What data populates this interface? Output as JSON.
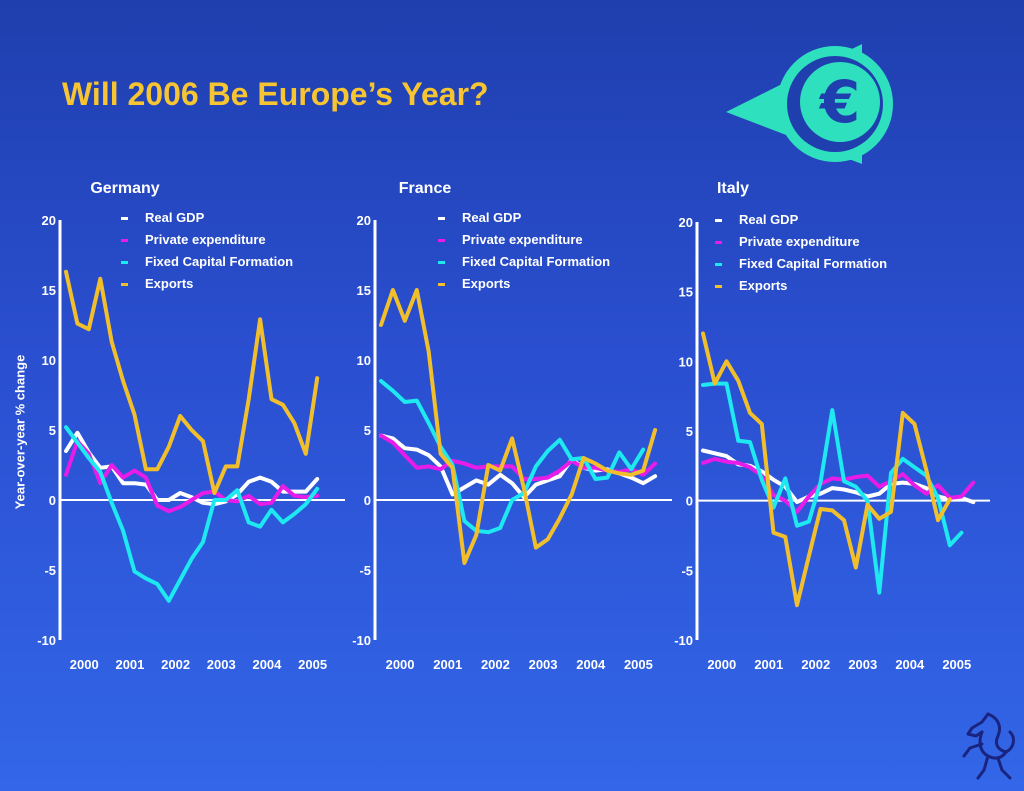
{
  "title": "Will 2006 Be Europe’s Year?",
  "ylabel": "Year-over-year % change",
  "colors": {
    "gdp": "#ffffff",
    "private": "#e81ce8",
    "fixed": "#1ee8f0",
    "exports": "#f2bf2c",
    "title": "#f7c531",
    "logo": "#2ee0bd"
  },
  "logos": [
    "euro-logo",
    "horse-logo"
  ],
  "chart_data": [
    {
      "type": "line",
      "title": "Germany",
      "ylim": [
        -10,
        20
      ],
      "y_ticks": [
        "20",
        "15",
        "10",
        "5",
        "0",
        "-5",
        "-10"
      ],
      "x_ticks": [
        "2000",
        "2001",
        "2002",
        "2003",
        "2004",
        "2005"
      ],
      "xlim": [
        2000,
        2006
      ],
      "legend": "top",
      "series": [
        {
          "name": "Real GDP",
          "key": "gdp",
          "x": [
            2000,
            2000.25,
            2000.5,
            2000.75,
            2001,
            2001.25,
            2001.5,
            2001.75,
            2002,
            2002.25,
            2002.5,
            2002.75,
            2003,
            2003.25,
            2003.5,
            2003.75,
            2004,
            2004.25,
            2004.5,
            2004.75,
            2005,
            2005.25,
            2005.5,
            2005.75
          ],
          "y": [
            3.5,
            4.8,
            3.4,
            2.3,
            2.4,
            1.2,
            1.2,
            1.1,
            0.0,
            0.0,
            0.5,
            0.2,
            -0.2,
            -0.3,
            -0.1,
            0.4,
            1.3,
            1.6,
            1.3,
            0.6,
            0.6,
            0.6,
            1.5,
            null
          ]
        },
        {
          "name": "Private expenditure",
          "key": "private",
          "x": [
            2000,
            2000.25,
            2000.5,
            2000.75,
            2001,
            2001.25,
            2001.5,
            2001.75,
            2002,
            2002.25,
            2002.5,
            2002.75,
            2003,
            2003.25,
            2003.5,
            2003.75,
            2004,
            2004.25,
            2004.5,
            2004.75,
            2005,
            2005.25,
            2005.5,
            2005.75
          ],
          "y": [
            1.8,
            4.2,
            3.3,
            1.2,
            2.5,
            1.6,
            2.1,
            1.6,
            -0.4,
            -0.8,
            -0.5,
            0.0,
            0.5,
            0.6,
            0.0,
            -0.1,
            0.3,
            -0.3,
            -0.2,
            1.0,
            0.3,
            0.2,
            0.3,
            null
          ]
        },
        {
          "name": "Fixed Capital Formation",
          "key": "fixed",
          "x": [
            2000,
            2000.25,
            2000.5,
            2000.75,
            2001,
            2001.25,
            2001.5,
            2001.75,
            2002,
            2002.25,
            2002.5,
            2002.75,
            2003,
            2003.25,
            2003.5,
            2003.75,
            2004,
            2004.25,
            2004.5,
            2004.75,
            2005,
            2005.25,
            2005.5,
            2005.75
          ],
          "y": [
            5.2,
            4.1,
            3.0,
            2.0,
            -0.2,
            -2.2,
            -5.1,
            -5.6,
            -6.0,
            -7.2,
            -5.7,
            -4.2,
            -3.0,
            0.0,
            0.0,
            0.7,
            -1.6,
            -1.9,
            -0.7,
            -1.6,
            -1.0,
            -0.3,
            0.8,
            null
          ]
        },
        {
          "name": "Exports",
          "key": "exports",
          "x": [
            2000,
            2000.25,
            2000.5,
            2000.75,
            2001,
            2001.25,
            2001.5,
            2001.75,
            2002,
            2002.25,
            2002.5,
            2002.75,
            2003,
            2003.25,
            2003.5,
            2003.75,
            2004,
            2004.25,
            2004.5,
            2004.75,
            2005,
            2005.25,
            2005.5,
            2005.75
          ],
          "y": [
            16.3,
            12.6,
            12.2,
            15.8,
            11.3,
            8.5,
            6.1,
            2.2,
            2.2,
            3.8,
            6.0,
            5.0,
            4.2,
            0.5,
            2.4,
            2.4,
            7.2,
            12.9,
            7.2,
            6.8,
            5.5,
            3.3,
            8.7,
            null
          ]
        }
      ]
    },
    {
      "type": "line",
      "title": "France",
      "ylim": [
        -10,
        20
      ],
      "y_ticks": [
        "20",
        "15",
        "10",
        "5",
        "0",
        "-5",
        "-10"
      ],
      "x_ticks": [
        "2000",
        "2001",
        "2002",
        "2003",
        "2004",
        "2005"
      ],
      "xlim": [
        2000,
        2006
      ],
      "legend": "top",
      "series": [
        {
          "name": "Real GDP",
          "key": "gdp",
          "x": [
            2000,
            2000.25,
            2000.5,
            2000.75,
            2001,
            2001.25,
            2001.5,
            2001.75,
            2002,
            2002.25,
            2002.5,
            2002.75,
            2003,
            2003.25,
            2003.5,
            2003.75,
            2004,
            2004.25,
            2004.5,
            2004.75,
            2005,
            2005.25,
            2005.5,
            2005.75
          ],
          "y": [
            4.6,
            4.4,
            3.7,
            3.6,
            3.2,
            2.4,
            0.4,
            0.9,
            1.4,
            1.1,
            1.8,
            1.2,
            0.2,
            1.1,
            1.4,
            1.7,
            2.9,
            2.3,
            2.1,
            2.2,
            1.9,
            1.6,
            1.2,
            1.7
          ]
        },
        {
          "name": "Private expenditure",
          "key": "private",
          "x": [
            2000,
            2000.25,
            2000.5,
            2000.75,
            2001,
            2001.25,
            2001.5,
            2001.75,
            2002,
            2002.25,
            2002.5,
            2002.75,
            2003,
            2003.25,
            2003.5,
            2003.75,
            2004,
            2004.25,
            2004.5,
            2004.75,
            2005,
            2005.25,
            2005.5,
            2005.75
          ],
          "y": [
            4.6,
            4.1,
            3.2,
            2.3,
            2.4,
            2.2,
            2.8,
            2.6,
            2.3,
            2.4,
            2.4,
            2.4,
            1.5,
            1.5,
            1.6,
            2.1,
            2.8,
            2.3,
            2.3,
            2.1,
            2.0,
            2.2,
            1.8,
            2.6
          ]
        },
        {
          "name": "Fixed Capital Formation",
          "key": "fixed",
          "x": [
            2000,
            2000.25,
            2000.5,
            2000.75,
            2001,
            2001.25,
            2001.5,
            2001.75,
            2002,
            2002.25,
            2002.5,
            2002.75,
            2003,
            2003.25,
            2003.5,
            2003.75,
            2004,
            2004.25,
            2004.5,
            2004.75,
            2005,
            2005.25,
            2005.5,
            2005.75
          ],
          "y": [
            8.5,
            7.8,
            7.0,
            7.1,
            5.5,
            3.8,
            2.5,
            -1.5,
            -2.2,
            -2.3,
            -2.0,
            0.0,
            0.5,
            2.4,
            3.5,
            4.3,
            2.9,
            3.0,
            1.5,
            1.6,
            3.4,
            2.2,
            3.6,
            null
          ]
        },
        {
          "name": "Exports",
          "key": "exports",
          "x": [
            2000,
            2000.25,
            2000.5,
            2000.75,
            2001,
            2001.25,
            2001.5,
            2001.75,
            2002,
            2002.25,
            2002.5,
            2002.75,
            2003,
            2003.25,
            2003.5,
            2003.75,
            2004,
            2004.25,
            2004.5,
            2004.75,
            2005,
            2005.25,
            2005.5,
            2005.75
          ],
          "y": [
            12.5,
            15.0,
            12.8,
            15.0,
            10.6,
            3.3,
            2.3,
            -4.5,
            -2.5,
            2.5,
            2.1,
            4.4,
            0.8,
            -3.4,
            -2.8,
            -1.3,
            0.4,
            3.0,
            2.6,
            2.1,
            1.9,
            1.8,
            2.1,
            5.0
          ]
        }
      ]
    },
    {
      "type": "line",
      "title": "Italy",
      "ylim": [
        -10,
        20
      ],
      "y_ticks": [
        "20",
        "15",
        "10",
        "5",
        "0",
        "-5",
        "-10"
      ],
      "x_ticks": [
        "2000",
        "2001",
        "2002",
        "2003",
        "2004",
        "2005"
      ],
      "xlim": [
        2000,
        2006
      ],
      "legend": "top",
      "series": [
        {
          "name": "Real GDP",
          "key": "gdp",
          "x": [
            2000,
            2000.25,
            2000.5,
            2000.75,
            2001,
            2001.25,
            2001.5,
            2001.75,
            2002,
            2002.25,
            2002.5,
            2002.75,
            2003,
            2003.25,
            2003.5,
            2003.75,
            2004,
            2004.25,
            2004.5,
            2004.75,
            2005,
            2005.25,
            2005.5,
            2005.75
          ],
          "y": [
            3.6,
            3.4,
            3.2,
            2.6,
            2.5,
            2.1,
            1.5,
            1.0,
            -0.1,
            0.3,
            0.5,
            0.9,
            0.8,
            0.6,
            0.3,
            0.5,
            1.2,
            1.3,
            1.2,
            0.9,
            0.3,
            0.1,
            0.2,
            -0.1
          ]
        },
        {
          "name": "Private expenditure",
          "key": "private",
          "x": [
            2000,
            2000.25,
            2000.5,
            2000.75,
            2001,
            2001.25,
            2001.5,
            2001.75,
            2002,
            2002.25,
            2002.5,
            2002.75,
            2003,
            2003.25,
            2003.5,
            2003.75,
            2004,
            2004.25,
            2004.5,
            2004.75,
            2005,
            2005.25,
            2005.5,
            2005.75
          ],
          "y": [
            2.7,
            3.0,
            2.8,
            2.7,
            2.4,
            1.8,
            0.4,
            0.0,
            -0.8,
            0.3,
            1.2,
            1.6,
            1.5,
            1.7,
            1.8,
            1.0,
            1.4,
            1.9,
            1.1,
            0.5,
            1.1,
            0.2,
            0.3,
            1.3
          ]
        },
        {
          "name": "Fixed Capital Formation",
          "key": "fixed",
          "x": [
            2000,
            2000.25,
            2000.5,
            2000.75,
            2001,
            2001.25,
            2001.5,
            2001.75,
            2002,
            2002.25,
            2002.5,
            2002.75,
            2003,
            2003.25,
            2003.5,
            2003.75,
            2004,
            2004.25,
            2004.5,
            2004.75,
            2005,
            2005.25,
            2005.5,
            2005.75
          ],
          "y": [
            8.3,
            8.4,
            8.4,
            4.3,
            4.2,
            1.5,
            -0.5,
            1.6,
            -1.8,
            -1.5,
            1.3,
            6.5,
            1.4,
            1.0,
            0.0,
            -6.6,
            2.0,
            3.0,
            2.4,
            1.8,
            0.2,
            -3.2,
            -2.3,
            null
          ]
        },
        {
          "name": "Exports",
          "key": "exports",
          "x": [
            2000,
            2000.25,
            2000.5,
            2000.75,
            2001,
            2001.25,
            2001.5,
            2001.75,
            2002,
            2002.25,
            2002.5,
            2002.75,
            2003,
            2003.25,
            2003.5,
            2003.75,
            2004,
            2004.25,
            2004.5,
            2004.75,
            2005,
            2005.25,
            2005.5,
            2005.75
          ],
          "y": [
            12.0,
            8.4,
            10.0,
            8.6,
            6.3,
            5.5,
            -2.3,
            -2.6,
            -7.5,
            -4.0,
            -0.6,
            -0.7,
            -1.4,
            -4.8,
            -0.3,
            -1.3,
            -0.8,
            6.3,
            5.5,
            2.2,
            -1.4,
            0.1,
            null,
            null
          ]
        }
      ]
    }
  ]
}
